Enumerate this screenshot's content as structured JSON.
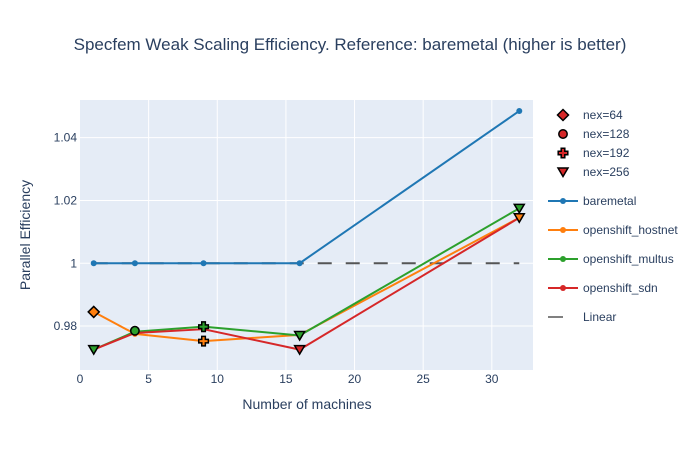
{
  "chart_data": {
    "type": "line",
    "title": "Specfem Weak Scaling Efficiency. Reference: baremetal (higher is better)",
    "xlabel": "Number of machines",
    "ylabel": "Parallel Efficiency",
    "xlim": [
      0,
      33
    ],
    "ylim": [
      0.966,
      1.052
    ],
    "x_ticks": [
      0,
      5,
      10,
      15,
      20,
      25,
      30
    ],
    "x_tick_labels": [
      "0",
      "5",
      "10",
      "15",
      "20",
      "25",
      "30"
    ],
    "y_ticks": [
      0.98,
      1.0,
      1.02,
      1.04
    ],
    "y_tick_labels": [
      "0.98",
      "1",
      "1.02",
      "1.04"
    ],
    "grid": true,
    "legend_position": "right",
    "marker_series": [
      {
        "name": "nex=64",
        "symbol": "diamond",
        "points": [
          {
            "x": 1,
            "y": 0.9845
          }
        ]
      },
      {
        "name": "nex=128",
        "symbol": "circle",
        "points": [
          {
            "x": 4,
            "y": 0.9785
          }
        ]
      },
      {
        "name": "nex=192",
        "symbol": "cross",
        "points": [
          {
            "x": 9,
            "y": 0.9798
          },
          {
            "x": 9,
            "y": 0.9752
          }
        ]
      },
      {
        "name": "nex=256",
        "symbol": "triangle-down",
        "points": [
          {
            "x": 1,
            "y": 0.9725
          },
          {
            "x": 16,
            "y": 0.9725
          },
          {
            "x": 16,
            "y": 0.977
          },
          {
            "x": 32,
            "y": 1.0175
          },
          {
            "x": 32,
            "y": 1.0145
          }
        ]
      }
    ],
    "series": [
      {
        "name": "baremetal",
        "color": "#1f77b4",
        "x": [
          1,
          4,
          9,
          16,
          32
        ],
        "y": [
          1.0,
          1.0,
          1.0,
          1.0,
          1.0485
        ]
      },
      {
        "name": "openshift_hostnet",
        "color": "#ff7f0e",
        "x": [
          1,
          4,
          9,
          16,
          32
        ],
        "y": [
          0.9845,
          0.9775,
          0.9752,
          0.9772,
          1.0145
        ]
      },
      {
        "name": "openshift_multus",
        "color": "#2ca02c",
        "x": [
          1,
          4,
          9,
          16,
          32
        ],
        "y": [
          0.9725,
          0.9782,
          0.9798,
          0.977,
          1.0175
        ]
      },
      {
        "name": "openshift_sdn",
        "color": "#d62728",
        "x": [
          1,
          4,
          9,
          16,
          32
        ],
        "y": [
          0.9725,
          0.9778,
          0.979,
          0.9725,
          1.0145
        ]
      }
    ],
    "reference_line": {
      "name": "Linear",
      "color": "#555555",
      "x": [
        1,
        32
      ],
      "y": [
        1.0,
        1.0
      ]
    }
  }
}
